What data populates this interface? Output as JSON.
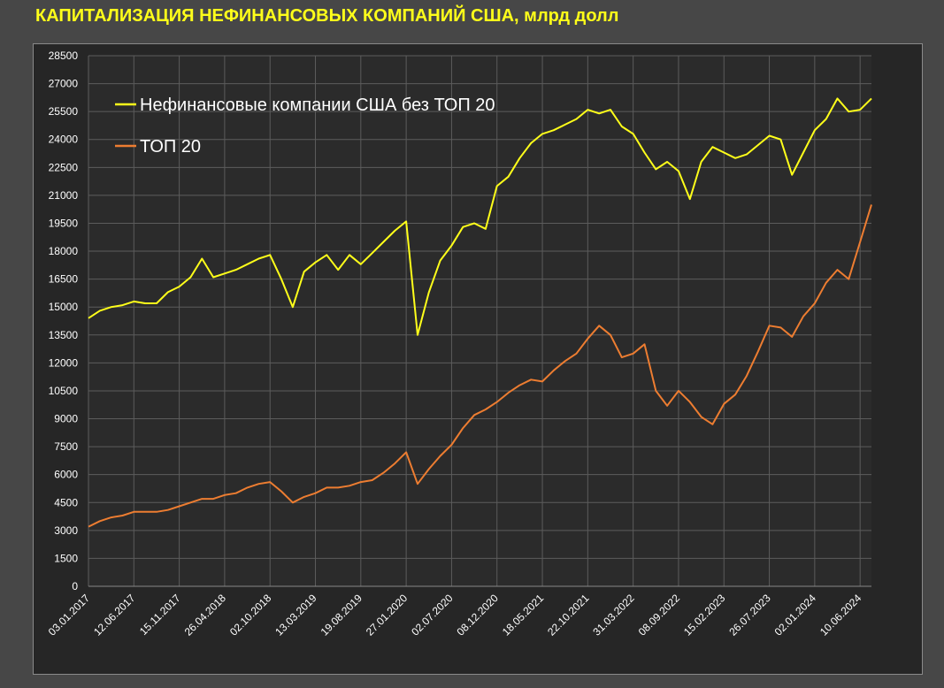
{
  "chart_data": {
    "type": "line",
    "title": "КАПИТАЛИЗАЦИЯ НЕФИНАНСОВЫХ КОМПАНИЙ США, млрд долл",
    "categories": [
      "03.01.2017",
      null,
      null,
      null,
      "12.06.2017",
      null,
      null,
      null,
      "15.11.2017",
      null,
      null,
      null,
      "26.04.2018",
      null,
      null,
      null,
      "02.10.2018",
      null,
      null,
      null,
      "13.03.2019",
      null,
      null,
      null,
      "19.08.2019",
      null,
      null,
      null,
      "27.01.2020",
      null,
      null,
      null,
      "02.07.2020",
      null,
      null,
      null,
      "08.12.2020",
      null,
      null,
      null,
      "18.05.2021",
      null,
      null,
      null,
      "22.10.2021",
      null,
      null,
      null,
      "31.03.2022",
      null,
      null,
      null,
      "08.09.2022",
      null,
      null,
      null,
      "15.02.2023",
      null,
      null,
      null,
      "26.07.2023",
      null,
      null,
      null,
      "02.01.2024",
      null,
      null,
      null,
      "10.06.2024",
      null
    ],
    "series": [
      {
        "name": "Нефинансовые компании США без ТОП 20",
        "color": "#ffff1a",
        "values": [
          14400,
          14800,
          15000,
          15100,
          15300,
          15200,
          15200,
          15800,
          16100,
          16600,
          17600,
          16600,
          16800,
          17000,
          17300,
          17600,
          17800,
          16500,
          15000,
          16900,
          17400,
          17800,
          17000,
          17800,
          17300,
          17900,
          18500,
          19100,
          19600,
          13500,
          15800,
          17500,
          18300,
          19300,
          19500,
          19200,
          21500,
          22000,
          23000,
          23800,
          24300,
          24500,
          24800,
          25100,
          25600,
          25400,
          25600,
          24700,
          24300,
          23300,
          22400,
          22800,
          22300,
          20800,
          22800,
          23600,
          23300,
          23000,
          23200,
          23700,
          24200,
          24000,
          22100,
          23300,
          24500,
          25100,
          26200,
          25500,
          25600,
          26200
        ]
      },
      {
        "name": "ТОП 20",
        "color": "#ed7d31",
        "values": [
          3200,
          3500,
          3700,
          3800,
          4000,
          4000,
          4000,
          4100,
          4300,
          4500,
          4700,
          4700,
          4900,
          5000,
          5300,
          5500,
          5600,
          5100,
          4500,
          4800,
          5000,
          5300,
          5300,
          5400,
          5600,
          5700,
          6100,
          6600,
          7200,
          5500,
          6300,
          7000,
          7600,
          8500,
          9200,
          9500,
          9900,
          10400,
          10800,
          11100,
          11000,
          11600,
          12100,
          12500,
          13300,
          14000,
          13500,
          12300,
          12500,
          13000,
          10500,
          9700,
          10500,
          9900,
          9100,
          8700,
          9800,
          10300,
          11300,
          12600,
          14000,
          13900,
          13400,
          14500,
          15200,
          16300,
          17000,
          16500,
          18500,
          20500
        ]
      }
    ],
    "ylim": [
      0,
      28500
    ],
    "yticks": [
      0,
      1500,
      3000,
      4500,
      6000,
      7500,
      9000,
      10500,
      12000,
      13500,
      15000,
      16500,
      18000,
      19500,
      21000,
      22500,
      24000,
      25500,
      27000,
      28500
    ],
    "grid": true,
    "legend": "top-left"
  }
}
